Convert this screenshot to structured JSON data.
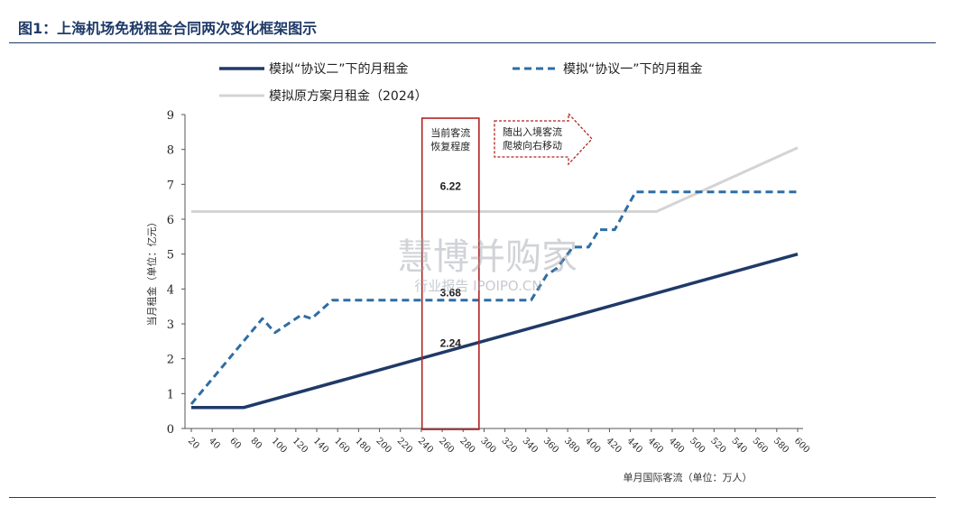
{
  "figure_title": "图1：上海机场免税租金合同两次变化框架图示",
  "watermark": {
    "main": "慧博并购家",
    "sub": "行业报告 IPOIPO.CN"
  },
  "colors": {
    "series_solid": "#1f3a68",
    "series_dashed": "#2e6da4",
    "series_grey": "#d4d4d4",
    "box_border": "#b22222",
    "arrow_border": "#b22222"
  },
  "chart_data": {
    "type": "line",
    "title": "",
    "xlabel": "单月国际客流（单位：万人）",
    "ylabel": "当月租金（单位：亿元）",
    "xlim": [
      20,
      600
    ],
    "ylim": [
      0,
      9
    ],
    "x_ticks": [
      20,
      40,
      60,
      80,
      100,
      120,
      140,
      160,
      180,
      200,
      220,
      240,
      260,
      280,
      300,
      320,
      340,
      360,
      380,
      400,
      420,
      440,
      460,
      480,
      500,
      520,
      540,
      560,
      580,
      600
    ],
    "y_ticks": [
      0,
      1,
      2,
      3,
      4,
      5,
      6,
      7,
      8,
      9
    ],
    "grid": false,
    "legend_position": "top",
    "series": [
      {
        "name": "模拟“协议二”下的月租金",
        "style": "solid",
        "points": [
          [
            20,
            0.6
          ],
          [
            60,
            0.6
          ],
          [
            70,
            0.6
          ],
          [
            600,
            5.0
          ]
        ]
      },
      {
        "name": "模拟“协议一”下的月租金",
        "style": "dashed",
        "points": [
          [
            20,
            0.7
          ],
          [
            88,
            3.15
          ],
          [
            100,
            2.75
          ],
          [
            125,
            3.25
          ],
          [
            135,
            3.15
          ],
          [
            155,
            3.68
          ],
          [
            345,
            3.68
          ],
          [
            360,
            4.4
          ],
          [
            370,
            4.6
          ],
          [
            385,
            5.2
          ],
          [
            400,
            5.2
          ],
          [
            410,
            5.7
          ],
          [
            425,
            5.7
          ],
          [
            445,
            6.78
          ],
          [
            600,
            6.78
          ]
        ]
      },
      {
        "name": "模拟原方案月租金（2024）",
        "style": "solid",
        "points": [
          [
            20,
            6.22
          ],
          [
            465,
            6.22
          ],
          [
            600,
            8.05
          ]
        ]
      }
    ],
    "annotations": {
      "box_label": "当前客流\n恢复程度",
      "box_x_range": [
        245,
        290
      ],
      "arrow_label": "随出入境客流\n爬坡向右移动",
      "data_labels": [
        {
          "text": "6.22",
          "x": 267,
          "y": 6.22
        },
        {
          "text": "3.68",
          "x": 267,
          "y": 3.68
        },
        {
          "text": "2.24",
          "x": 267,
          "y": 2.24
        }
      ]
    }
  }
}
